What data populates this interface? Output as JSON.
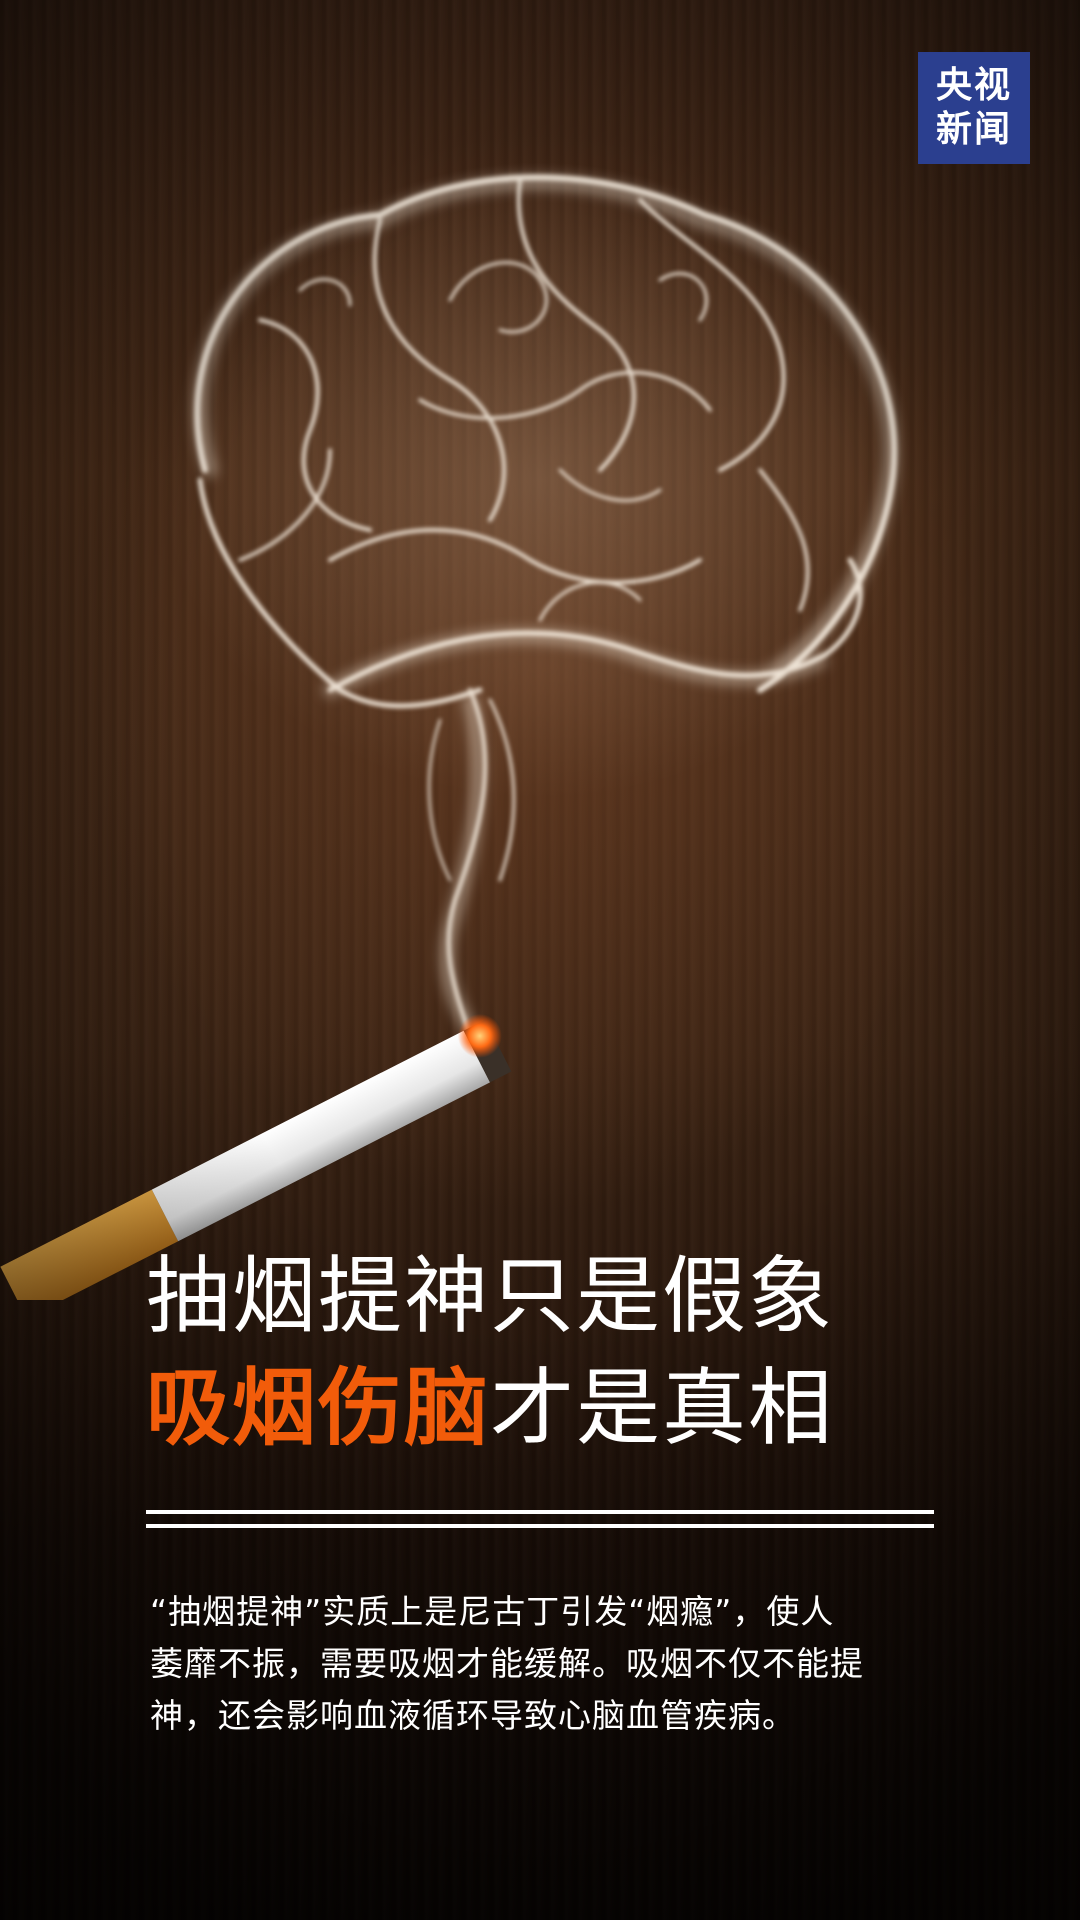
{
  "logo": {
    "line1": "央视",
    "line2": "新闻"
  },
  "headline": {
    "line1": "抽烟提神只是假象",
    "line2_highlight": "吸烟伤脑",
    "line2_rest": "才是真相",
    "highlight_color": "#f25c0a"
  },
  "body": {
    "line1": "“抽烟提神”实质上是尼古丁引发“烟瘾”，使人",
    "line2": "萎靡不振，需要吸烟才能缓解。吸烟不仅不能提",
    "line3": "神，还会影响血液循环导致心脑血管疾病。"
  },
  "illustration": {
    "brain": "smoke-brain",
    "cigarette": "lit-cigarette"
  }
}
